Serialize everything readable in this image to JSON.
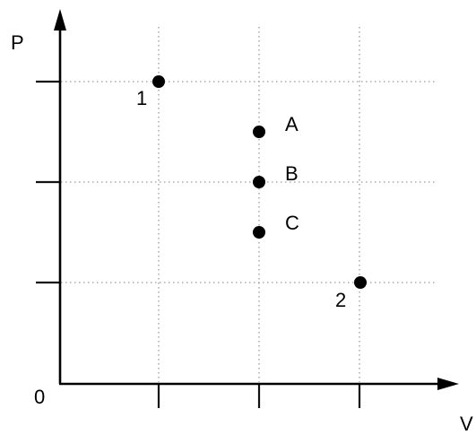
{
  "diagram": {
    "axis_labels": {
      "y": "P",
      "x": "V",
      "origin": "0"
    },
    "points": [
      {
        "label": "1",
        "v": 1,
        "p": 3
      },
      {
        "label": "A",
        "v": 2,
        "p": 2.5
      },
      {
        "label": "B",
        "v": 2,
        "p": 2
      },
      {
        "label": "C",
        "v": 2,
        "p": 1.5
      },
      {
        "label": "2",
        "v": 3,
        "p": 1
      }
    ],
    "grid": {
      "v_lines": [
        1,
        2,
        3
      ],
      "p_lines": [
        1,
        2,
        3
      ]
    }
  }
}
